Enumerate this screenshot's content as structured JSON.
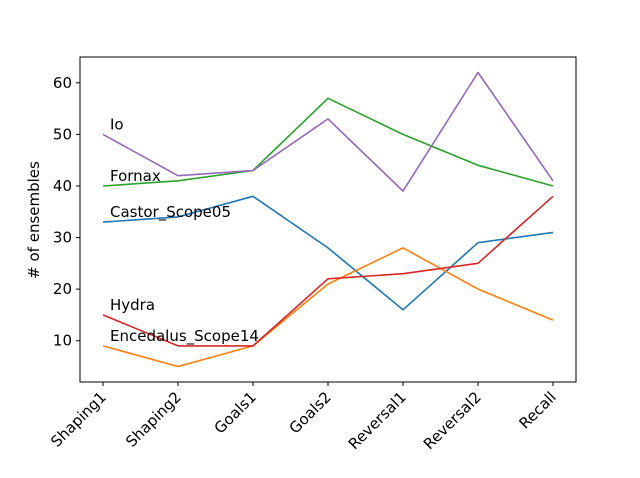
{
  "chart_data": {
    "type": "line",
    "title": "",
    "xlabel": "",
    "ylabel": "# of ensembles",
    "categories": [
      "Shaping1",
      "Shaping2",
      "Goals1",
      "Goals2",
      "Reversal1",
      "Reversal2",
      "Recall"
    ],
    "ylim": [
      2,
      65
    ],
    "yticks": [
      10,
      20,
      30,
      40,
      50,
      60
    ],
    "grid": false,
    "legend": "none",
    "series": [
      {
        "name": "Castor_Scope05",
        "color": "#1f77b4",
        "values": [
          33,
          34,
          38,
          28,
          16,
          29,
          31
        ]
      },
      {
        "name": "Encedalus_Scope14",
        "color": "#ff7f0e",
        "values": [
          9,
          5,
          9,
          21,
          28,
          20,
          14
        ]
      },
      {
        "name": "Fornax",
        "color": "#2ca02c",
        "values": [
          40,
          41,
          43,
          57,
          50,
          44,
          40
        ]
      },
      {
        "name": "Hydra",
        "color": "#d62728",
        "values": [
          15,
          9,
          9,
          22,
          23,
          25,
          38
        ]
      },
      {
        "name": "Io",
        "color": "#9467bd",
        "values": [
          50,
          42,
          43,
          53,
          39,
          62,
          41
        ]
      }
    ]
  }
}
